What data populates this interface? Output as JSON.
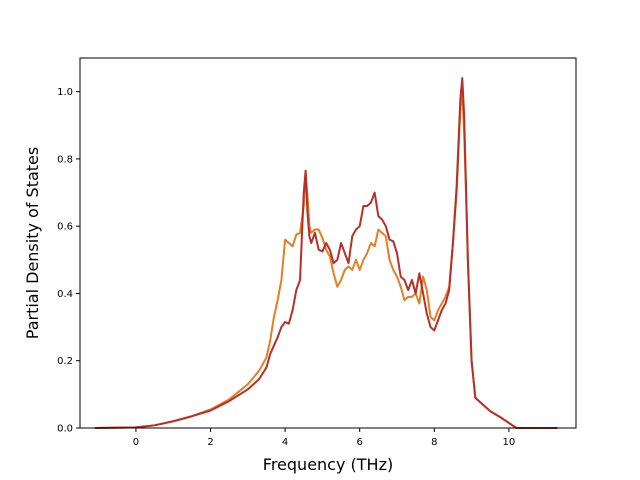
{
  "chart_data": {
    "type": "line",
    "title": "",
    "xlabel": "Frequency (THz)",
    "ylabel": "Partial Density of States",
    "xlim": [
      -1.5,
      11.8
    ],
    "ylim": [
      0.0,
      1.1
    ],
    "xticks": [
      0,
      2,
      4,
      6,
      8,
      10
    ],
    "xtick_labels": [
      "0",
      "2",
      "4",
      "6",
      "8",
      "10"
    ],
    "yticks": [
      0.0,
      0.2,
      0.4,
      0.6,
      0.8,
      1.0
    ],
    "ytick_labels": [
      "0.0",
      "0.2",
      "0.4",
      "0.6",
      "0.8",
      "1.0"
    ],
    "grid": false,
    "legend": "none",
    "series": [
      {
        "color": "#e67e22",
        "x": [
          -1.1,
          0.0,
          0.5,
          1.0,
          1.5,
          2.0,
          2.5,
          3.0,
          3.3,
          3.5,
          3.6,
          3.7,
          3.8,
          3.9,
          4.0,
          4.1,
          4.2,
          4.3,
          4.4,
          4.5,
          4.55,
          4.6,
          4.65,
          4.7,
          4.8,
          4.9,
          5.0,
          5.1,
          5.2,
          5.3,
          5.4,
          5.5,
          5.6,
          5.7,
          5.8,
          5.9,
          6.0,
          6.1,
          6.2,
          6.3,
          6.4,
          6.5,
          6.6,
          6.7,
          6.8,
          6.9,
          7.0,
          7.1,
          7.2,
          7.3,
          7.4,
          7.5,
          7.6,
          7.7,
          7.8,
          7.9,
          8.0,
          8.1,
          8.2,
          8.3,
          8.4,
          8.5,
          8.6,
          8.7,
          8.75,
          8.8,
          8.85,
          8.9,
          9.0,
          9.1,
          9.2,
          9.3,
          9.5,
          9.8,
          10.0,
          10.2,
          11.3
        ],
        "y": [
          0.0,
          0.002,
          0.008,
          0.02,
          0.035,
          0.055,
          0.085,
          0.13,
          0.17,
          0.21,
          0.26,
          0.33,
          0.38,
          0.44,
          0.56,
          0.55,
          0.54,
          0.575,
          0.58,
          0.66,
          0.76,
          0.69,
          0.6,
          0.58,
          0.59,
          0.59,
          0.565,
          0.53,
          0.51,
          0.46,
          0.42,
          0.44,
          0.47,
          0.48,
          0.47,
          0.5,
          0.47,
          0.5,
          0.52,
          0.55,
          0.54,
          0.59,
          0.58,
          0.57,
          0.5,
          0.47,
          0.45,
          0.42,
          0.38,
          0.39,
          0.39,
          0.4,
          0.37,
          0.45,
          0.41,
          0.33,
          0.32,
          0.35,
          0.37,
          0.39,
          0.42,
          0.55,
          0.7,
          0.95,
          1.0,
          0.88,
          0.7,
          0.5,
          0.2,
          0.09,
          0.08,
          0.07,
          0.05,
          0.03,
          0.015,
          0.0,
          0.0
        ]
      },
      {
        "color": "#b5302a",
        "x": [
          -1.1,
          0.0,
          0.5,
          1.0,
          1.5,
          2.0,
          2.5,
          3.0,
          3.3,
          3.5,
          3.6,
          3.7,
          3.8,
          3.9,
          4.0,
          4.1,
          4.2,
          4.3,
          4.4,
          4.5,
          4.55,
          4.6,
          4.65,
          4.7,
          4.8,
          4.9,
          5.0,
          5.1,
          5.2,
          5.3,
          5.4,
          5.5,
          5.6,
          5.7,
          5.8,
          5.9,
          6.0,
          6.1,
          6.2,
          6.3,
          6.4,
          6.5,
          6.6,
          6.7,
          6.8,
          6.9,
          7.0,
          7.1,
          7.2,
          7.3,
          7.4,
          7.5,
          7.6,
          7.7,
          7.8,
          7.9,
          8.0,
          8.1,
          8.2,
          8.3,
          8.4,
          8.5,
          8.6,
          8.7,
          8.75,
          8.8,
          8.85,
          8.9,
          9.0,
          9.1,
          9.2,
          9.3,
          9.5,
          9.8,
          10.0,
          10.2,
          11.3
        ],
        "y": [
          0.0,
          0.002,
          0.008,
          0.02,
          0.035,
          0.052,
          0.08,
          0.115,
          0.145,
          0.18,
          0.22,
          0.245,
          0.27,
          0.3,
          0.315,
          0.31,
          0.35,
          0.41,
          0.44,
          0.7,
          0.765,
          0.64,
          0.57,
          0.55,
          0.58,
          0.53,
          0.525,
          0.55,
          0.53,
          0.49,
          0.5,
          0.55,
          0.52,
          0.49,
          0.57,
          0.59,
          0.6,
          0.66,
          0.66,
          0.67,
          0.7,
          0.63,
          0.62,
          0.6,
          0.56,
          0.555,
          0.52,
          0.45,
          0.44,
          0.41,
          0.44,
          0.4,
          0.46,
          0.4,
          0.34,
          0.3,
          0.29,
          0.32,
          0.35,
          0.37,
          0.41,
          0.55,
          0.72,
          0.98,
          1.04,
          0.93,
          0.72,
          0.5,
          0.2,
          0.09,
          0.08,
          0.07,
          0.05,
          0.03,
          0.015,
          0.0,
          0.0
        ]
      }
    ]
  }
}
